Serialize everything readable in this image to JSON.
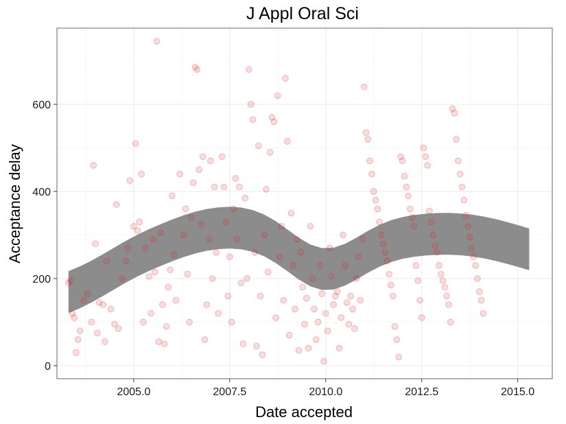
{
  "chart_data": {
    "type": "scatter",
    "title": "J Appl Oral Sci",
    "xlabel": "Date accepted",
    "ylabel": "Acceptance delay",
    "xlim": [
      2003.0,
      2015.9
    ],
    "ylim": [
      -30,
      775
    ],
    "xticks": [
      2005.0,
      2007.5,
      2010.0,
      2012.5,
      2015.0
    ],
    "xtick_labels": [
      "2005.0",
      "2007.5",
      "2010.0",
      "2012.5",
      "2015.0"
    ],
    "yticks": [
      0,
      200,
      400,
      600
    ],
    "ytick_labels": [
      "0",
      "200",
      "400",
      "600"
    ],
    "grid": true,
    "legend": "none",
    "colors": {
      "points": "#e31a1c",
      "band": "#7f7f7f",
      "panel_border": "#7f7f7f",
      "grid": "#ebebeb"
    },
    "series": [
      {
        "points": [
          [
            2003.3,
            190
          ],
          [
            2003.35,
            195
          ],
          [
            2003.4,
            120
          ],
          [
            2003.45,
            110
          ],
          [
            2003.5,
            30
          ],
          [
            2003.55,
            60
          ],
          [
            2003.6,
            80
          ],
          [
            2003.7,
            150
          ],
          [
            2003.8,
            165
          ],
          [
            2003.9,
            100
          ],
          [
            2003.95,
            460
          ],
          [
            2004.0,
            280
          ],
          [
            2004.05,
            75
          ],
          [
            2004.1,
            145
          ],
          [
            2004.2,
            140
          ],
          [
            2004.25,
            55
          ],
          [
            2004.3,
            240
          ],
          [
            2004.4,
            130
          ],
          [
            2004.5,
            95
          ],
          [
            2004.55,
            370
          ],
          [
            2004.6,
            85
          ],
          [
            2004.7,
            200
          ],
          [
            2004.8,
            240
          ],
          [
            2004.85,
            270
          ],
          [
            2004.9,
            425
          ],
          [
            2005.0,
            320
          ],
          [
            2005.05,
            510
          ],
          [
            2005.1,
            310
          ],
          [
            2005.15,
            330
          ],
          [
            2005.2,
            440
          ],
          [
            2005.25,
            100
          ],
          [
            2005.3,
            270
          ],
          [
            2005.4,
            205
          ],
          [
            2005.45,
            120
          ],
          [
            2005.5,
            290
          ],
          [
            2005.55,
            215
          ],
          [
            2005.6,
            745
          ],
          [
            2005.65,
            55
          ],
          [
            2005.7,
            305
          ],
          [
            2005.75,
            140
          ],
          [
            2005.8,
            50
          ],
          [
            2005.85,
            90
          ],
          [
            2005.9,
            180
          ],
          [
            2005.95,
            220
          ],
          [
            2006.0,
            390
          ],
          [
            2006.05,
            255
          ],
          [
            2006.1,
            150
          ],
          [
            2006.2,
            440
          ],
          [
            2006.3,
            300
          ],
          [
            2006.35,
            360
          ],
          [
            2006.4,
            210
          ],
          [
            2006.45,
            100
          ],
          [
            2006.5,
            340
          ],
          [
            2006.55,
            420
          ],
          [
            2006.6,
            685
          ],
          [
            2006.65,
            680
          ],
          [
            2006.7,
            450
          ],
          [
            2006.75,
            325
          ],
          [
            2006.8,
            480
          ],
          [
            2006.85,
            60
          ],
          [
            2006.9,
            140
          ],
          [
            2006.95,
            290
          ],
          [
            2007.0,
            470
          ],
          [
            2007.05,
            200
          ],
          [
            2007.1,
            410
          ],
          [
            2007.15,
            260
          ],
          [
            2007.2,
            120
          ],
          [
            2007.3,
            480
          ],
          [
            2007.35,
            410
          ],
          [
            2007.4,
            330
          ],
          [
            2007.45,
            160
          ],
          [
            2007.5,
            250
          ],
          [
            2007.55,
            100
          ],
          [
            2007.6,
            360
          ],
          [
            2007.65,
            430
          ],
          [
            2007.7,
            290
          ],
          [
            2007.75,
            410
          ],
          [
            2007.8,
            190
          ],
          [
            2007.85,
            50
          ],
          [
            2007.9,
            385
          ],
          [
            2007.95,
            200
          ],
          [
            2008.0,
            680
          ],
          [
            2008.05,
            600
          ],
          [
            2008.1,
            565
          ],
          [
            2008.15,
            260
          ],
          [
            2008.2,
            45
          ],
          [
            2008.25,
            505
          ],
          [
            2008.3,
            160
          ],
          [
            2008.35,
            25
          ],
          [
            2008.4,
            300
          ],
          [
            2008.45,
            405
          ],
          [
            2008.5,
            215
          ],
          [
            2008.55,
            490
          ],
          [
            2008.6,
            570
          ],
          [
            2008.65,
            560
          ],
          [
            2008.7,
            110
          ],
          [
            2008.75,
            620
          ],
          [
            2008.8,
            250
          ],
          [
            2008.85,
            320
          ],
          [
            2008.9,
            150
          ],
          [
            2008.95,
            660
          ],
          [
            2009.0,
            515
          ],
          [
            2009.05,
            70
          ],
          [
            2009.1,
            350
          ],
          [
            2009.15,
            230
          ],
          [
            2009.2,
            130
          ],
          [
            2009.25,
            290
          ],
          [
            2009.3,
            35
          ],
          [
            2009.35,
            260
          ],
          [
            2009.4,
            180
          ],
          [
            2009.45,
            95
          ],
          [
            2009.5,
            155
          ],
          [
            2009.55,
            40
          ],
          [
            2009.6,
            320
          ],
          [
            2009.65,
            200
          ],
          [
            2009.7,
            130
          ],
          [
            2009.75,
            60
          ],
          [
            2009.8,
            100
          ],
          [
            2009.85,
            230
          ],
          [
            2009.9,
            165
          ],
          [
            2009.95,
            10
          ],
          [
            2010.0,
            120
          ],
          [
            2010.05,
            80
          ],
          [
            2010.1,
            270
          ],
          [
            2010.15,
            205
          ],
          [
            2010.2,
            140
          ],
          [
            2010.25,
            160
          ],
          [
            2010.3,
            170
          ],
          [
            2010.35,
            40
          ],
          [
            2010.4,
            110
          ],
          [
            2010.45,
            300
          ],
          [
            2010.5,
            230
          ],
          [
            2010.55,
            145
          ],
          [
            2010.6,
            95
          ],
          [
            2010.65,
            160
          ],
          [
            2010.7,
            130
          ],
          [
            2010.75,
            85
          ],
          [
            2010.8,
            200
          ],
          [
            2010.85,
            250
          ],
          [
            2010.9,
            150
          ],
          [
            2010.95,
            290
          ],
          [
            2011.0,
            640
          ],
          [
            2011.05,
            535
          ],
          [
            2011.1,
            520
          ],
          [
            2011.15,
            470
          ],
          [
            2011.2,
            440
          ],
          [
            2011.25,
            400
          ],
          [
            2011.3,
            380
          ],
          [
            2011.35,
            360
          ],
          [
            2011.4,
            330
          ],
          [
            2011.45,
            300
          ],
          [
            2011.5,
            280
          ],
          [
            2011.55,
            260
          ],
          [
            2011.6,
            240
          ],
          [
            2011.65,
            210
          ],
          [
            2011.7,
            185
          ],
          [
            2011.75,
            160
          ],
          [
            2011.8,
            90
          ],
          [
            2011.85,
            60
          ],
          [
            2011.9,
            20
          ],
          [
            2011.95,
            480
          ],
          [
            2012.0,
            470
          ],
          [
            2012.05,
            435
          ],
          [
            2012.1,
            410
          ],
          [
            2012.15,
            390
          ],
          [
            2012.2,
            360
          ],
          [
            2012.25,
            340
          ],
          [
            2012.3,
            320
          ],
          [
            2012.35,
            230
          ],
          [
            2012.4,
            195
          ],
          [
            2012.45,
            150
          ],
          [
            2012.5,
            110
          ],
          [
            2012.55,
            500
          ],
          [
            2012.6,
            480
          ],
          [
            2012.65,
            460
          ],
          [
            2012.7,
            355
          ],
          [
            2012.75,
            330
          ],
          [
            2012.8,
            300
          ],
          [
            2012.85,
            275
          ],
          [
            2012.9,
            260
          ],
          [
            2012.95,
            230
          ],
          [
            2013.0,
            210
          ],
          [
            2013.05,
            195
          ],
          [
            2013.1,
            180
          ],
          [
            2013.15,
            160
          ],
          [
            2013.2,
            140
          ],
          [
            2013.25,
            100
          ],
          [
            2013.3,
            590
          ],
          [
            2013.35,
            580
          ],
          [
            2013.4,
            520
          ],
          [
            2013.45,
            470
          ],
          [
            2013.5,
            440
          ],
          [
            2013.55,
            410
          ],
          [
            2013.6,
            380
          ],
          [
            2013.65,
            345
          ],
          [
            2013.7,
            320
          ],
          [
            2013.75,
            295
          ],
          [
            2013.8,
            270
          ],
          [
            2013.85,
            250
          ],
          [
            2013.9,
            230
          ],
          [
            2013.95,
            200
          ],
          [
            2014.0,
            170
          ],
          [
            2014.05,
            150
          ],
          [
            2014.1,
            120
          ]
        ]
      }
    ]
  }
}
